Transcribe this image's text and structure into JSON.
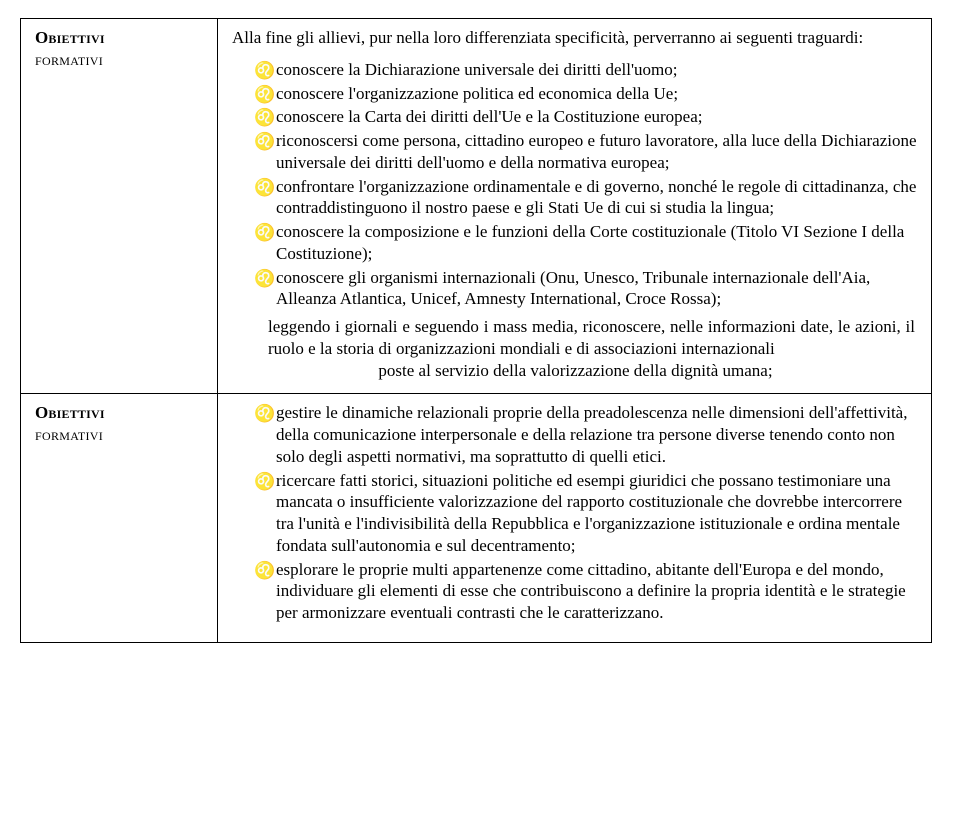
{
  "colors": {
    "text": "#000000",
    "background": "#ffffff",
    "border": "#000000"
  },
  "typography": {
    "font_family": "Times New Roman",
    "body_fontsize_pt": 13,
    "line_height": 1.28
  },
  "row1": {
    "label_top": "Obiettivi",
    "label_bottom": "formativi",
    "intro": "Alla fine gli allievi, pur nella loro differenziata specificità, perverranno ai seguenti traguardi:",
    "bullet_glyph": "♌",
    "items": [
      "conoscere la Dichiarazione universale dei diritti dell'uomo;",
      "conoscere l'organizzazione politica ed economica della Ue;",
      "conoscere la Carta dei diritti dell'Ue e la Costituzione europea;",
      "riconoscersi come persona, cittadino europeo e futuro lavoratore, alla luce della Dichiarazione universale dei diritti dell'uomo e della normativa europea;",
      "confrontare l'organizzazione ordinamentale e di governo, nonché le regole di cittadinanza, che contraddistinguono il nostro paese e gli Stati Ue di cui si studia la lingua;",
      "conoscere la composizione e le funzioni della Corte costituzionale (Titolo VI Sezione I della Costituzione);",
      "conoscere gli organismi internazionali (Onu, Unesco, Tribunale internazionale dell'Aia, Alleanza Atlantica, Unicef, Amnesty International, Croce Rossa);"
    ],
    "trail1": "leggendo i giornali e seguendo i mass media, riconoscere, nelle informazioni date, le azioni, il ruolo e la storia di organizzazioni mondiali e di associazioni internazionali",
    "trail2": "poste al servizio della valorizzazione della dignità umana;"
  },
  "row2": {
    "label_top": "Obiettivi",
    "label_bottom": "formativi",
    "bullet_glyph": "♌",
    "items": [
      "gestire le dinamiche relazionali proprie della preadolescenza nelle dimensioni dell'affettività, della comunicazione interpersonale e della relazione tra persone diverse tenendo conto non solo degli aspetti normativi, ma soprattutto di quelli etici.",
      "ricercare fatti storici, situazioni politiche ed esempi giuridici che possano testimoniare una mancata o insufficiente valorizzazione del rapporto costituzionale che dovrebbe intercorrere tra l'unità e l'indivisibilità della Repubblica e l'organizzazione istituzionale e ordina mentale fondata sull'autonomia e sul decentramento;",
      "esplorare le proprie multi appartenenze come cittadino, abitante dell'Europa e del mondo, individuare gli elementi di esse che contribuiscono a definire la propria identità e le strategie per armonizzare eventuali contrasti che le caratterizzano."
    ]
  }
}
